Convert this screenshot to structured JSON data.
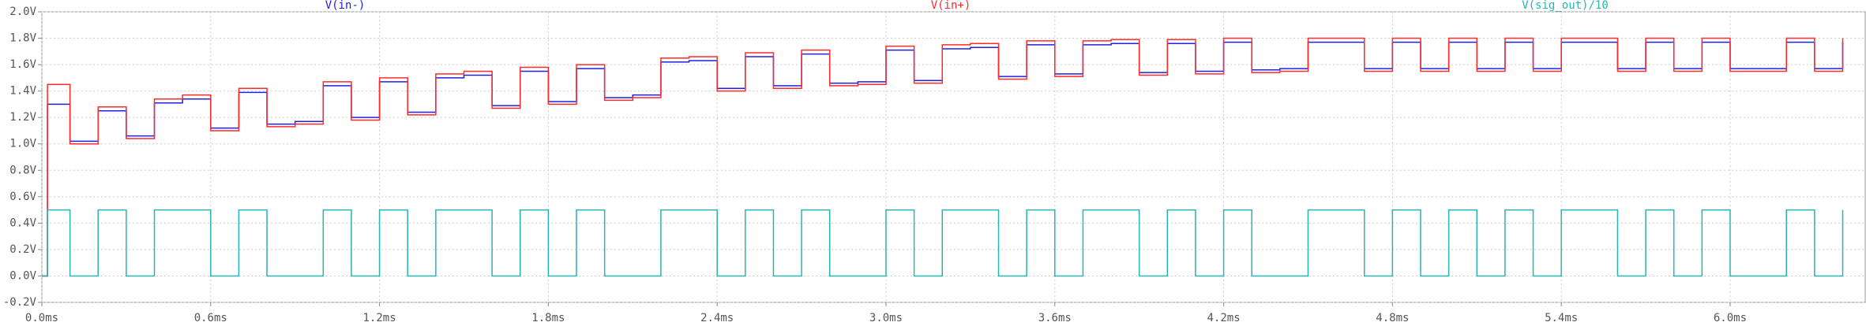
{
  "chart_data": {
    "type": "line",
    "step": true,
    "x": [
      0,
      0.02,
      0.1,
      0.2,
      0.3,
      0.4,
      0.5,
      0.6,
      0.7,
      0.8,
      0.9,
      1.0,
      1.1,
      1.2,
      1.3,
      1.4,
      1.5,
      1.6,
      1.7,
      1.8,
      1.9,
      2.0,
      2.1,
      2.2,
      2.3,
      2.4,
      2.5,
      2.6,
      2.7,
      2.8,
      2.9,
      3.0,
      3.1,
      3.2,
      3.3,
      3.4,
      3.5,
      3.6,
      3.7,
      3.8,
      3.9,
      4.0,
      4.1,
      4.2,
      4.3,
      4.4,
      4.5,
      4.6,
      4.7,
      4.8,
      4.9,
      5.0,
      5.1,
      5.2,
      5.3,
      5.4,
      5.5,
      5.6,
      5.7,
      5.8,
      5.9,
      6.0,
      6.1,
      6.2,
      6.3,
      6.4
    ],
    "series": [
      {
        "name": "V(in-)",
        "color": "#2020e0",
        "values": [
          0,
          1.3,
          1.02,
          1.25,
          1.06,
          1.31,
          1.34,
          1.12,
          1.39,
          1.15,
          1.17,
          1.44,
          1.2,
          1.47,
          1.24,
          1.5,
          1.52,
          1.29,
          1.55,
          1.32,
          1.57,
          1.35,
          1.37,
          1.62,
          1.63,
          1.42,
          1.66,
          1.44,
          1.68,
          1.46,
          1.47,
          1.71,
          1.48,
          1.72,
          1.73,
          1.51,
          1.75,
          1.53,
          1.75,
          1.76,
          1.54,
          1.76,
          1.55,
          1.77,
          1.56,
          1.57,
          1.77,
          1.77,
          1.57,
          1.77,
          1.57,
          1.77,
          1.57,
          1.77,
          1.57,
          1.77,
          1.77,
          1.57,
          1.77,
          1.57,
          1.77,
          1.57,
          1.57,
          1.77,
          1.57,
          1.77
        ]
      },
      {
        "name": "V(in+)",
        "color": "#ff2a2a",
        "values": [
          0,
          1.45,
          1.0,
          1.28,
          1.04,
          1.34,
          1.37,
          1.1,
          1.42,
          1.13,
          1.15,
          1.47,
          1.18,
          1.5,
          1.22,
          1.53,
          1.55,
          1.27,
          1.58,
          1.3,
          1.6,
          1.33,
          1.35,
          1.65,
          1.66,
          1.4,
          1.69,
          1.42,
          1.71,
          1.44,
          1.45,
          1.74,
          1.46,
          1.75,
          1.76,
          1.49,
          1.78,
          1.51,
          1.78,
          1.79,
          1.52,
          1.79,
          1.53,
          1.8,
          1.54,
          1.55,
          1.8,
          1.8,
          1.55,
          1.8,
          1.55,
          1.8,
          1.55,
          1.8,
          1.55,
          1.8,
          1.8,
          1.55,
          1.8,
          1.55,
          1.8,
          1.55,
          1.55,
          1.8,
          1.55,
          1.8
        ]
      },
      {
        "name": "V(sig_out)/10",
        "color": "#2ab3b3",
        "values": [
          0,
          0.5,
          0,
          0.5,
          0,
          0.5,
          0.5,
          0,
          0.5,
          0,
          0,
          0.5,
          0,
          0.5,
          0,
          0.5,
          0.5,
          0,
          0.5,
          0,
          0.5,
          0,
          0,
          0.5,
          0.5,
          0,
          0.5,
          0,
          0.5,
          0,
          0,
          0.5,
          0,
          0.5,
          0.5,
          0,
          0.5,
          0,
          0.5,
          0.5,
          0,
          0.5,
          0,
          0.5,
          0,
          0,
          0.5,
          0.5,
          0,
          0.5,
          0,
          0.5,
          0,
          0.5,
          0,
          0.5,
          0.5,
          0,
          0.5,
          0,
          0.5,
          0,
          0,
          0.5,
          0,
          0.5
        ]
      }
    ],
    "xlim": [
      0,
      6.48
    ],
    "ylim": [
      -0.2,
      2.0
    ],
    "xticks": [
      {
        "value": 0,
        "label": "0.0ms"
      },
      {
        "value": 0.6,
        "label": "0.6ms"
      },
      {
        "value": 1.2,
        "label": "1.2ms"
      },
      {
        "value": 1.8,
        "label": "1.8ms"
      },
      {
        "value": 2.4,
        "label": "2.4ms"
      },
      {
        "value": 3.0,
        "label": "3.0ms"
      },
      {
        "value": 3.6,
        "label": "3.6ms"
      },
      {
        "value": 4.2,
        "label": "4.2ms"
      },
      {
        "value": 4.8,
        "label": "4.8ms"
      },
      {
        "value": 5.4,
        "label": "5.4ms"
      },
      {
        "value": 6.0,
        "label": "6.0ms"
      }
    ],
    "yticks": [
      {
        "value": -0.2,
        "label": "-0.2V"
      },
      {
        "value": 0,
        "label": "0.0V"
      },
      {
        "value": 0.2,
        "label": "0.2V"
      },
      {
        "value": 0.4,
        "label": "0.4V"
      },
      {
        "value": 0.6,
        "label": "0.6V"
      },
      {
        "value": 0.8,
        "label": "0.8V"
      },
      {
        "value": 1.0,
        "label": "1.0V"
      },
      {
        "value": 1.2,
        "label": "1.2V"
      },
      {
        "value": 1.4,
        "label": "1.4V"
      },
      {
        "value": 1.6,
        "label": "1.6V"
      },
      {
        "value": 1.8,
        "label": "1.8V"
      },
      {
        "value": 2.0,
        "label": "2.0V"
      }
    ],
    "grid": true
  }
}
